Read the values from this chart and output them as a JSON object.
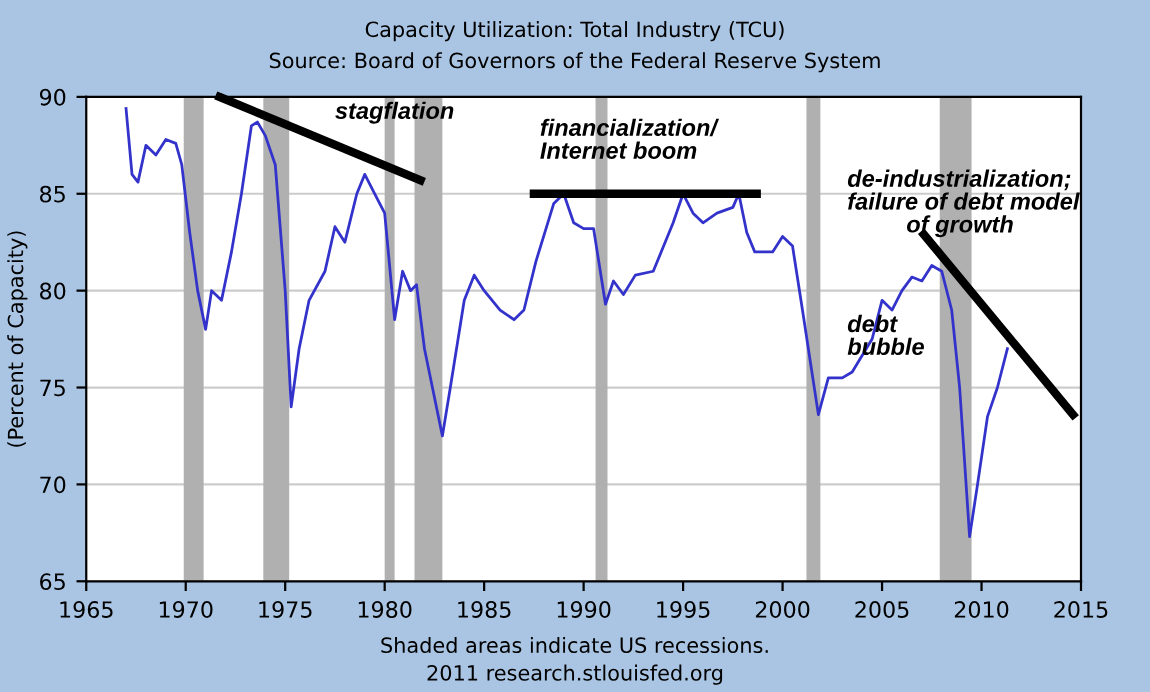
{
  "chart_data": {
    "type": "line",
    "title": "Capacity Utilization: Total Industry (TCU)",
    "subtitle": "Source: Board of Governors of the Federal Reserve System",
    "ylabel": "(Percent of Capacity)",
    "series": [
      {
        "color": "#3333cc",
        "x": [
          1967.0,
          1967.3,
          1967.6,
          1968.0,
          1968.5,
          1969.0,
          1969.5,
          1969.8,
          1970.2,
          1970.6,
          1971.0,
          1971.3,
          1971.8,
          1972.3,
          1972.8,
          1973.3,
          1973.6,
          1974.0,
          1974.5,
          1975.0,
          1975.3,
          1975.7,
          1976.2,
          1977.0,
          1977.5,
          1978.0,
          1978.6,
          1979.0,
          1979.5,
          1980.0,
          1980.5,
          1980.9,
          1981.3,
          1981.6,
          1982.0,
          1982.9,
          1983.3,
          1984.0,
          1984.5,
          1985.0,
          1985.8,
          1986.5,
          1987.0,
          1987.6,
          1988.5,
          1989.0,
          1989.5,
          1990.0,
          1990.5,
          1991.1,
          1991.5,
          1992.0,
          1992.6,
          1993.5,
          1994.5,
          1995.0,
          1995.5,
          1996.0,
          1996.7,
          1997.5,
          1997.8,
          1998.2,
          1998.6,
          1999.5,
          2000.0,
          2000.5,
          2001.0,
          2001.8,
          2002.3,
          2003.0,
          2003.5,
          2004.5,
          2005.0,
          2005.5,
          2006.0,
          2006.5,
          2007.0,
          2007.5,
          2008.0,
          2008.5,
          2008.9,
          2009.4,
          2009.8,
          2010.3,
          2010.8,
          2011.3
        ],
        "values": [
          89.4,
          86.0,
          85.6,
          87.5,
          87.0,
          87.8,
          87.6,
          86.5,
          83.0,
          80.0,
          78.0,
          80.0,
          79.5,
          82.0,
          85.0,
          88.5,
          88.7,
          88.0,
          86.5,
          80.0,
          74.0,
          77.0,
          79.5,
          81.0,
          83.3,
          82.5,
          85.0,
          86.0,
          85.0,
          84.0,
          78.5,
          81.0,
          80.0,
          80.3,
          77.0,
          72.5,
          75.0,
          79.5,
          80.8,
          80.0,
          79.0,
          78.5,
          79.0,
          81.5,
          84.5,
          85.0,
          83.5,
          83.2,
          83.2,
          79.3,
          80.5,
          79.8,
          80.8,
          81.0,
          83.5,
          85.0,
          84.0,
          83.5,
          84.0,
          84.3,
          85.0,
          83.0,
          82.0,
          82.0,
          82.8,
          82.3,
          79.0,
          73.6,
          75.5,
          75.5,
          75.8,
          77.5,
          79.5,
          79.0,
          80.0,
          80.7,
          80.5,
          81.3,
          81.0,
          79.0,
          75.0,
          67.3,
          70.0,
          73.5,
          75.0,
          77.0
        ]
      },
      {
        "color": "#000000",
        "x": [
          1971.7,
          1981.8
        ],
        "values": [
          90.0,
          85.7
        ]
      },
      {
        "color": "#000000",
        "x": [
          1987.5,
          1998.7
        ],
        "values": [
          85.0,
          85.0
        ]
      },
      {
        "color": "#000000",
        "x": [
          2007.1,
          2014.6
        ],
        "values": [
          82.9,
          73.6
        ]
      }
    ],
    "bands": [
      {
        "axis": "x",
        "from": 1969.9,
        "to": 1970.9,
        "color": "#b0b0b0"
      },
      {
        "axis": "x",
        "from": 1973.9,
        "to": 1975.2,
        "color": "#b0b0b0"
      },
      {
        "axis": "x",
        "from": 1980.0,
        "to": 1980.5,
        "color": "#b0b0b0"
      },
      {
        "axis": "x",
        "from": 1981.5,
        "to": 1982.9,
        "color": "#b0b0b0"
      },
      {
        "axis": "x",
        "from": 1990.6,
        "to": 1991.2,
        "color": "#b0b0b0"
      },
      {
        "axis": "x",
        "from": 2001.2,
        "to": 2001.9,
        "color": "#b0b0b0"
      },
      {
        "axis": "x",
        "from": 2007.9,
        "to": 2009.5,
        "color": "#b0b0b0"
      }
    ],
    "annotations": [
      "stagflation",
      "financialization/\nInternet boom",
      "de-industrialization;\nfailure of debt model\n         of growth",
      "debt\nbubble",
      "Shaded areas indicate US recessions.",
      "2011 research.stlouisfed.org"
    ],
    "xlim": [
      1965,
      2015
    ],
    "xticks": [
      1965,
      1970,
      1975,
      1980,
      1985,
      1990,
      1995,
      2000,
      2005,
      2010,
      2015
    ],
    "ylim": [
      65,
      90
    ],
    "yticks": [
      65,
      70,
      75,
      80,
      85,
      90
    ],
    "grid": "y",
    "marker": "none",
    "line_style": "solid"
  }
}
